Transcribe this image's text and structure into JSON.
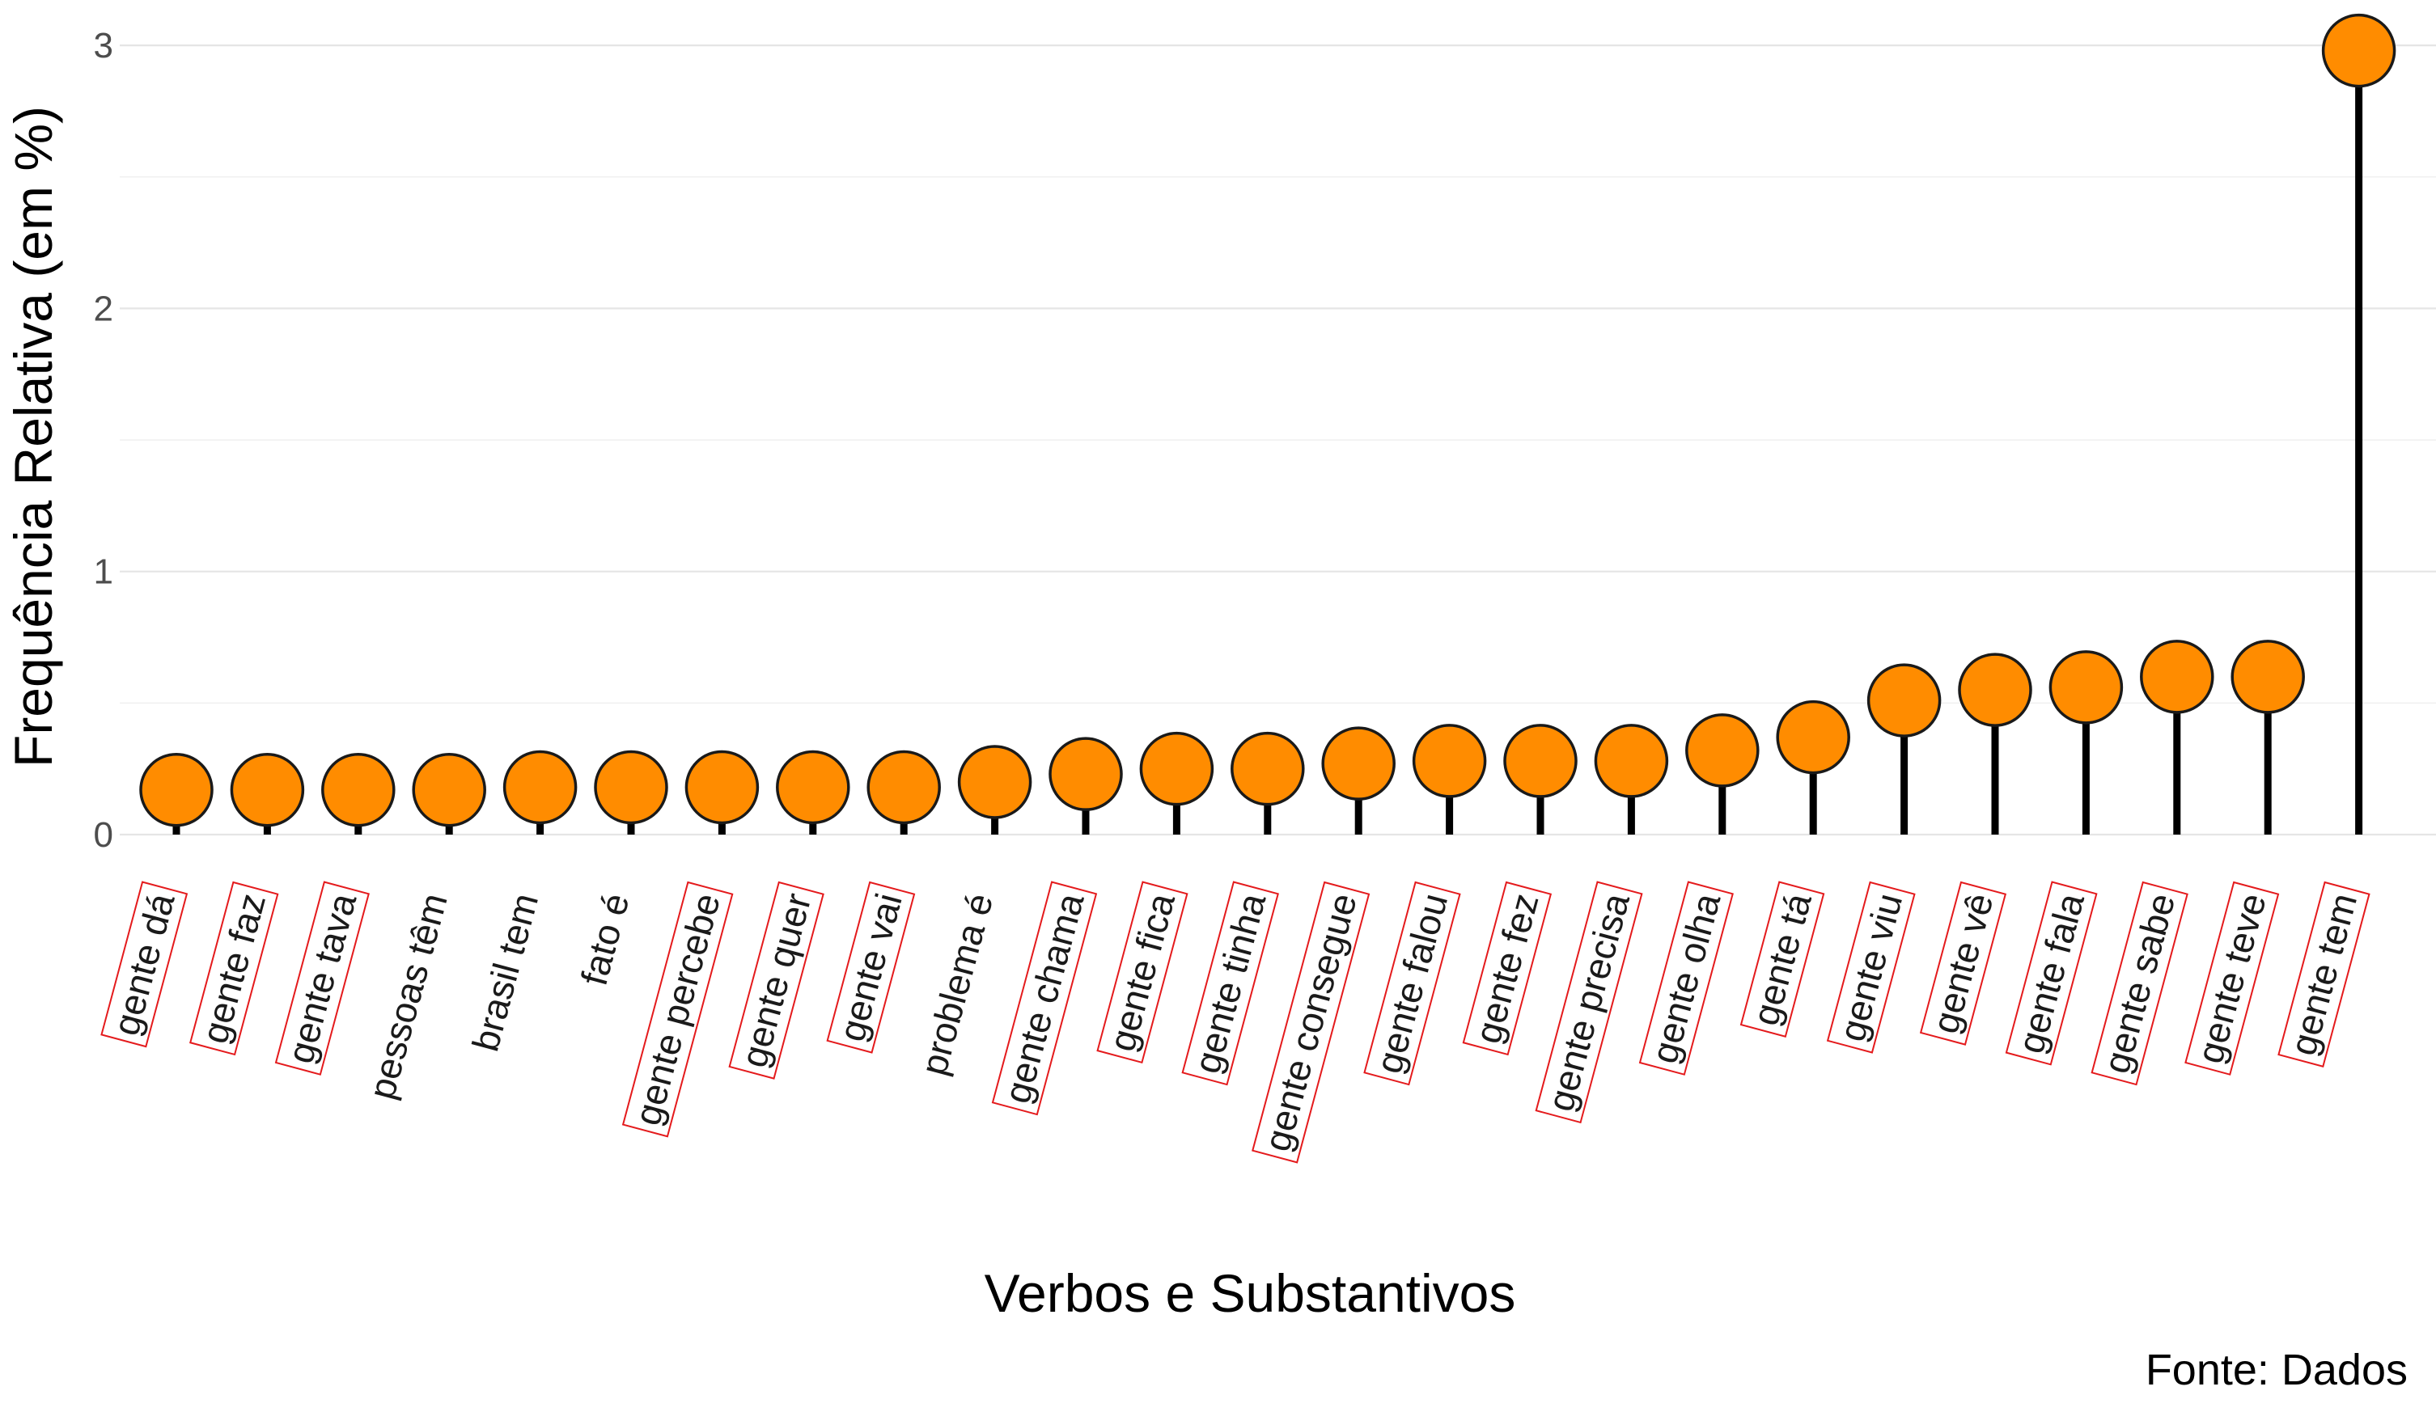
{
  "chart_data": {
    "type": "lollipop",
    "xlabel": "Verbos e Substantivos",
    "ylabel": "Frequência Relativa (em %)",
    "caption": "Fonte: Dados",
    "ylim": [
      0,
      3.05
    ],
    "yticks": [
      0,
      1,
      2,
      3
    ],
    "grid": true,
    "colors": {
      "point_fill": "#FF8C00",
      "point_stroke": "#1a1a1a",
      "stem": "#000000",
      "label_box": "#E41A1C",
      "grid": "#e5e5e5"
    },
    "categories": [
      "gente dá",
      "gente faz",
      "gente tava",
      "pessoas têm",
      "brasil tem",
      "fato é",
      "gente percebe",
      "gente quer",
      "gente vai",
      "problema é",
      "gente chama",
      "gente fica",
      "gente tinha",
      "gente consegue",
      "gente falou",
      "gente fez",
      "gente precisa",
      "gente olha",
      "gente tá",
      "gente viu",
      "gente vê",
      "gente fala",
      "gente sabe",
      "gente teve",
      "gente tem"
    ],
    "values": [
      0.17,
      0.17,
      0.17,
      0.17,
      0.18,
      0.18,
      0.18,
      0.18,
      0.18,
      0.2,
      0.23,
      0.25,
      0.25,
      0.27,
      0.28,
      0.28,
      0.28,
      0.32,
      0.37,
      0.51,
      0.55,
      0.56,
      0.6,
      0.6,
      2.98
    ],
    "highlighted": [
      true,
      true,
      true,
      false,
      false,
      false,
      true,
      true,
      true,
      false,
      true,
      true,
      true,
      true,
      true,
      true,
      true,
      true,
      true,
      true,
      true,
      true,
      true,
      true,
      true
    ]
  }
}
